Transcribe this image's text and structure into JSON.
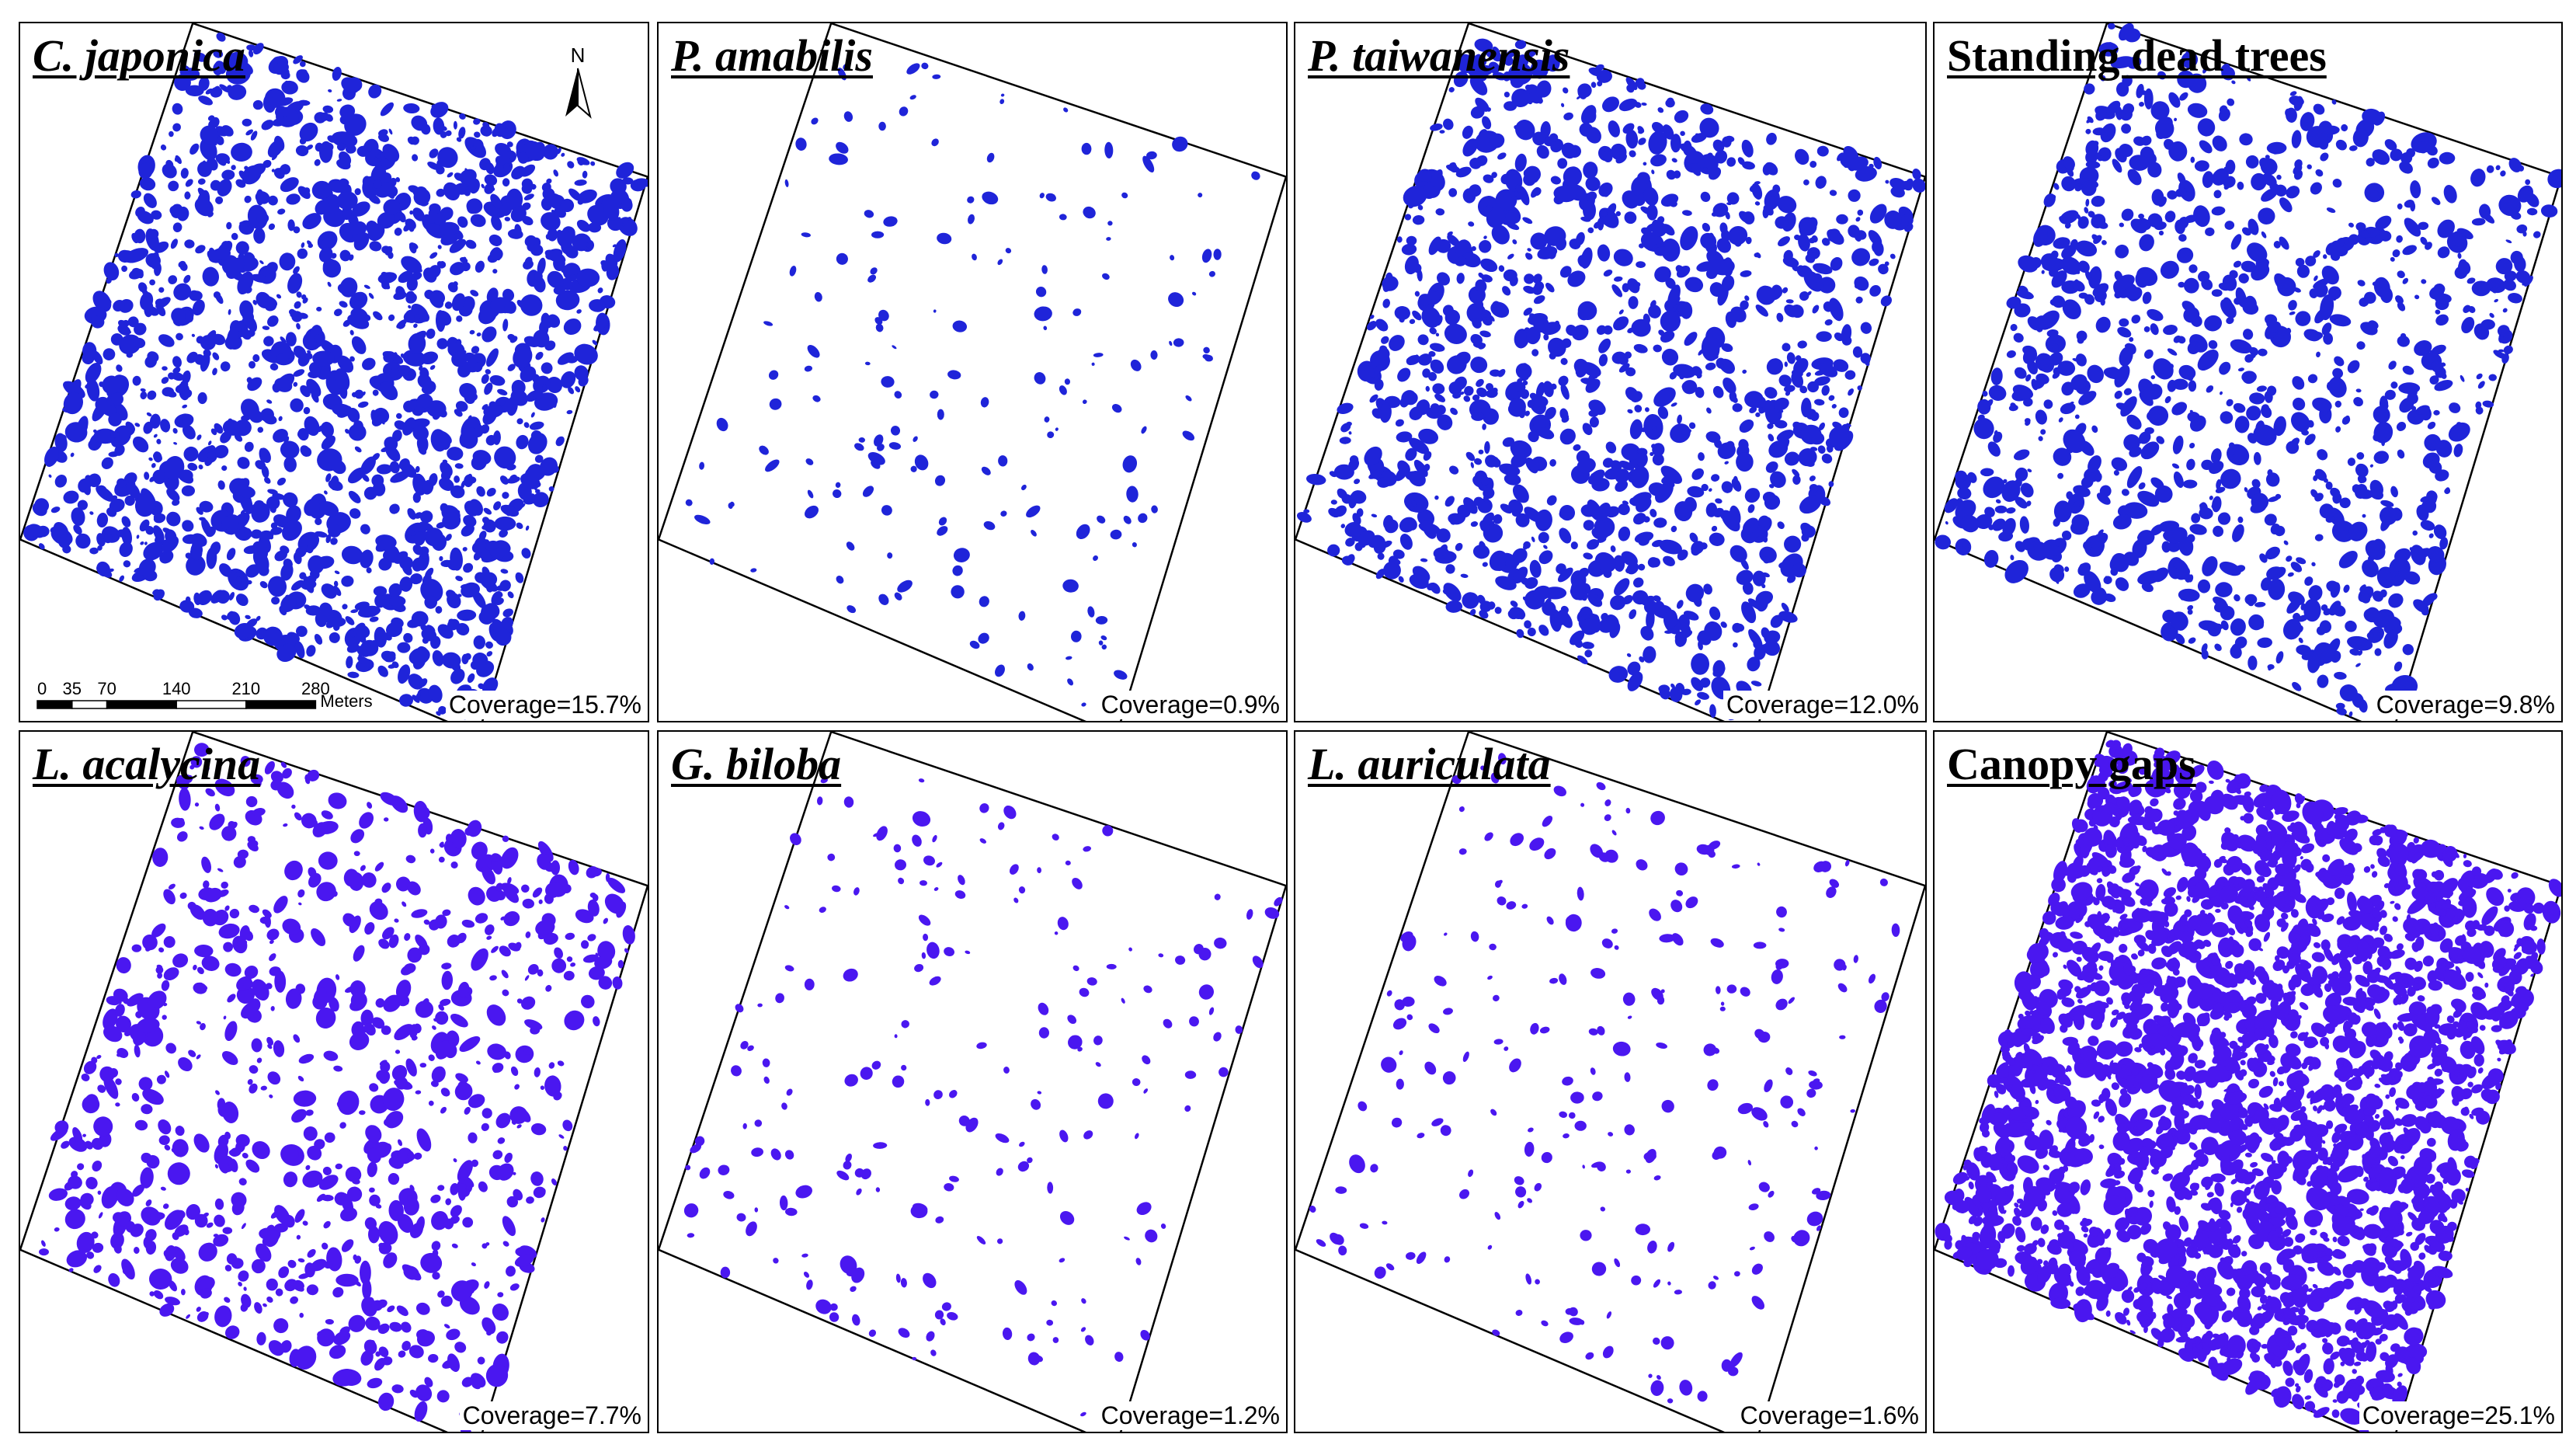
{
  "figure": {
    "patch_color": "#1a1ae6",
    "panels": [
      {
        "title": "C. japonica",
        "italic": true,
        "coverage": "Coverage=15.7%",
        "density": 15.7,
        "color": "#1f24d9"
      },
      {
        "title": "P. amabilis",
        "italic": true,
        "coverage": "Coverage=0.9%",
        "density": 0.9,
        "color": "#1f24d9"
      },
      {
        "title": "P. taiwanensis",
        "italic": true,
        "coverage": "Coverage=12.0%",
        "density": 12.0,
        "color": "#1f24d9"
      },
      {
        "title": "Standing dead trees",
        "italic": false,
        "coverage": "Coverage=9.8%",
        "density": 9.8,
        "color": "#1f24d9"
      },
      {
        "title": "L. acalycina",
        "italic": true,
        "coverage": "Coverage=7.7%",
        "density": 7.7,
        "color": "#4a17f0"
      },
      {
        "title": "G. biloba",
        "italic": true,
        "coverage": "Coverage=1.2%",
        "density": 1.2,
        "color": "#4a17f0"
      },
      {
        "title": "L. auriculata",
        "italic": true,
        "coverage": "Coverage=1.6%",
        "density": 1.6,
        "color": "#4a17f0"
      },
      {
        "title": "Canopy gaps",
        "italic": false,
        "coverage": "Coverage=25.1%",
        "density": 25.1,
        "color": "#4a17f0"
      }
    ],
    "north_arrow": {
      "label": "N"
    },
    "scale_bar": {
      "ticks": [
        "0",
        "35",
        "70",
        "140",
        "210",
        "280"
      ],
      "unit": "Meters"
    }
  }
}
